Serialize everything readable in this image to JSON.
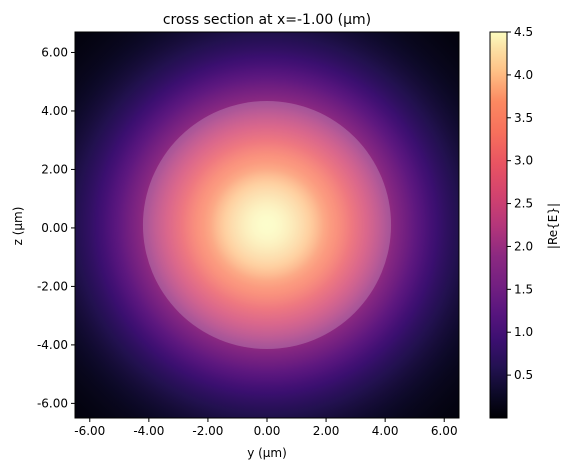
{
  "chart_data": {
    "type": "heatmap",
    "title": "cross section at x=-1.00 (μm)",
    "xlabel": "y (μm)",
    "ylabel": "z (μm)",
    "xlim": [
      -6.5,
      6.5
    ],
    "ylim": [
      -6.5,
      6.7
    ],
    "x_ticks": [
      -6,
      -4,
      -2,
      0,
      2,
      4,
      6
    ],
    "y_ticks": [
      -6,
      -4,
      -2,
      0,
      2,
      4,
      6
    ],
    "x_tick_labels": [
      "-6.00",
      "-4.00",
      "-2.00",
      "0.00",
      "2.00",
      "4.00",
      "6.00"
    ],
    "y_tick_labels": [
      "-6.00",
      "-4.00",
      "-2.00",
      "0.00",
      "2.00",
      "4.00",
      "6.00"
    ],
    "colormap": "magma",
    "field": {
      "center": [
        0.0,
        0.1
      ],
      "peak_value": 4.5,
      "gaussian_sigma": 3.2
    },
    "structure_overlay": {
      "shape": "circle",
      "center": [
        0.0,
        0.1
      ],
      "radius": 4.2,
      "fill_color": "#ffffff",
      "opacity": 0.2
    },
    "colorbar": {
      "label": "|Re{E}|",
      "range": [
        0.0,
        4.5
      ],
      "ticks": [
        0.5,
        1.0,
        1.5,
        2.0,
        2.5,
        3.0,
        3.5,
        4.0,
        4.5
      ],
      "tick_labels": [
        "0.5",
        "1.0",
        "1.5",
        "2.0",
        "2.5",
        "3.0",
        "3.5",
        "4.0",
        "4.5"
      ]
    }
  }
}
